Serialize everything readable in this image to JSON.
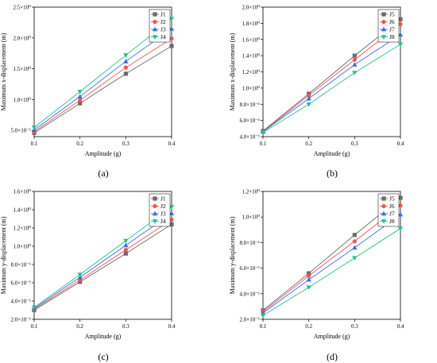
{
  "figure": {
    "panel_labels": [
      "(a)",
      "(b)",
      "(c)",
      "(d)"
    ]
  },
  "chart_data": [
    {
      "type": "line",
      "panel": "(a)",
      "xlabel": "Amplitude (g)",
      "ylabel": "Maximum x-displacement (m)",
      "x": [
        0.1,
        0.2,
        0.3,
        0.4
      ],
      "x_ticks": [
        "0.1",
        "0.2",
        "0.3",
        "0.4"
      ],
      "xlim": [
        0.1,
        0.4
      ],
      "ylim": [
        0.4,
        2.5
      ],
      "y_ticks": [
        0.5,
        1.0,
        1.5,
        2.0,
        2.5
      ],
      "y_tick_labels": [
        "5.0×10⁻¹",
        "1.0×10⁰",
        "1.5×10⁰",
        "2.0×10⁰",
        "2.5×10⁰"
      ],
      "legend_position": "top-right",
      "series": [
        {
          "name": "J1",
          "color": "#6b6b6b",
          "marker": "square",
          "values": [
            0.46,
            0.94,
            1.42,
            1.87
          ]
        },
        {
          "name": "J2",
          "color": "#f25555",
          "marker": "circle",
          "values": [
            0.48,
            0.99,
            1.52,
            1.99
          ]
        },
        {
          "name": "J3",
          "color": "#3a6fe0",
          "marker": "triangle-up",
          "values": [
            0.51,
            1.05,
            1.62,
            2.15
          ]
        },
        {
          "name": "J4",
          "color": "#22c28a",
          "marker": "triangle-down",
          "values": [
            0.55,
            1.13,
            1.72,
            2.31
          ]
        }
      ]
    },
    {
      "type": "line",
      "panel": "(b)",
      "xlabel": "Amplitude (g)",
      "ylabel": "Maximum x-displacement (m)",
      "x": [
        0.1,
        0.2,
        0.3,
        0.4
      ],
      "x_ticks": [
        "0.1",
        "0.2",
        "0.3",
        "0.4"
      ],
      "xlim": [
        0.1,
        0.4
      ],
      "ylim": [
        0.4,
        2.0
      ],
      "y_ticks": [
        0.4,
        0.6,
        0.8,
        1.0,
        1.2,
        1.4,
        1.6,
        1.8,
        2.0
      ],
      "y_tick_labels": [
        "4.0×10⁻¹",
        "6.0×10⁻¹",
        "8.0×10⁻¹",
        "1.0×10⁰",
        "1.2×10⁰",
        "1.4×10⁰",
        "1.6×10⁰",
        "1.8×10⁰",
        "2.0×10⁰"
      ],
      "legend_position": "top-right",
      "series": [
        {
          "name": "J5",
          "color": "#6b6b6b",
          "marker": "square",
          "values": [
            0.47,
            0.93,
            1.4,
            1.85
          ]
        },
        {
          "name": "J6",
          "color": "#f25555",
          "marker": "circle",
          "values": [
            0.46,
            0.91,
            1.35,
            1.79
          ]
        },
        {
          "name": "J7",
          "color": "#3a6fe0",
          "marker": "triangle-up",
          "values": [
            0.46,
            0.87,
            1.29,
            1.66
          ]
        },
        {
          "name": "J8",
          "color": "#22c28a",
          "marker": "triangle-down",
          "values": [
            0.45,
            0.8,
            1.19,
            1.54
          ]
        }
      ]
    },
    {
      "type": "line",
      "panel": "(c)",
      "xlabel": "Amplitude (g)",
      "ylabel": "Maximum y-displacement (m)",
      "x": [
        0.1,
        0.2,
        0.3,
        0.4
      ],
      "x_ticks": [
        "0.1",
        "0.2",
        "0.3",
        "0.4"
      ],
      "xlim": [
        0.1,
        0.4
      ],
      "ylim": [
        0.2,
        1.6
      ],
      "y_ticks": [
        0.2,
        0.4,
        0.6,
        0.8,
        1.0,
        1.2,
        1.4,
        1.6
      ],
      "y_tick_labels": [
        "2.0×10⁻¹",
        "4.0×10⁻¹",
        "6.0×10⁻¹",
        "8.0×10⁻¹",
        "1.0×10⁰",
        "1.2×10⁰",
        "1.4×10⁰",
        "1.6×10⁰"
      ],
      "legend_position": "top-right",
      "series": [
        {
          "name": "J1",
          "color": "#6b6b6b",
          "marker": "square",
          "values": [
            0.3,
            0.61,
            0.92,
            1.24
          ]
        },
        {
          "name": "J2",
          "color": "#f25555",
          "marker": "circle",
          "values": [
            0.31,
            0.63,
            0.96,
            1.29
          ]
        },
        {
          "name": "J3",
          "color": "#3a6fe0",
          "marker": "triangle-up",
          "values": [
            0.32,
            0.66,
            1.01,
            1.36
          ]
        },
        {
          "name": "J4",
          "color": "#22c28a",
          "marker": "triangle-down",
          "values": [
            0.33,
            0.69,
            1.06,
            1.43
          ]
        }
      ]
    },
    {
      "type": "line",
      "panel": "(d)",
      "xlabel": "Amplitude (g)",
      "ylabel": "Maximum y-displacement (m)",
      "x": [
        0.1,
        0.2,
        0.3,
        0.4
      ],
      "x_ticks": [
        "0.1",
        "0.2",
        "0.3",
        "0.4"
      ],
      "xlim": [
        0.1,
        0.4
      ],
      "ylim": [
        0.2,
        1.2
      ],
      "y_ticks": [
        0.2,
        0.4,
        0.6,
        0.8,
        1.0,
        1.2
      ],
      "y_tick_labels": [
        "2.0×10⁻¹",
        "4.0×10⁻¹",
        "6.0×10⁻¹",
        "8.0×10⁻¹",
        "1.0×10⁰",
        "1.2×10⁰"
      ],
      "legend_position": "top-right",
      "series": [
        {
          "name": "J5",
          "color": "#6b6b6b",
          "marker": "square",
          "values": [
            0.27,
            0.56,
            0.86,
            1.15
          ]
        },
        {
          "name": "J6",
          "color": "#f25555",
          "marker": "circle",
          "values": [
            0.26,
            0.54,
            0.81,
            1.09
          ]
        },
        {
          "name": "J7",
          "color": "#3a6fe0",
          "marker": "triangle-up",
          "values": [
            0.25,
            0.51,
            0.76,
            1.02
          ]
        },
        {
          "name": "J8",
          "color": "#22c28a",
          "marker": "triangle-down",
          "values": [
            0.23,
            0.45,
            0.68,
            0.91
          ]
        }
      ]
    }
  ]
}
